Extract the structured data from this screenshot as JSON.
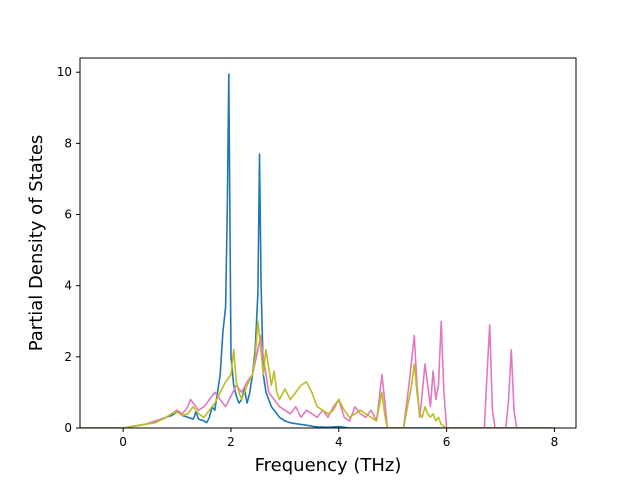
{
  "chart_data": {
    "type": "line",
    "title": "",
    "xlabel": "Frequency (THz)",
    "ylabel": "Partial Density of States",
    "xlim": [
      -0.8,
      8.4
    ],
    "ylim": [
      0,
      10.4
    ],
    "x_ticks": [
      0,
      2,
      4,
      6,
      8
    ],
    "y_ticks": [
      0,
      2,
      4,
      6,
      8,
      10
    ],
    "x_tick_labels": [
      "0",
      "2",
      "4",
      "6",
      "8"
    ],
    "y_tick_labels": [
      "0",
      "2",
      "4",
      "6",
      "8",
      "10"
    ],
    "grid": false,
    "legend": "none",
    "series": [
      {
        "color": "#1f77b4",
        "x": [
          -0.8,
          -0.4,
          0,
          0.2,
          0.4,
          0.6,
          0.8,
          0.9,
          1.0,
          1.1,
          1.2,
          1.3,
          1.35,
          1.4,
          1.5,
          1.55,
          1.6,
          1.65,
          1.7,
          1.75,
          1.8,
          1.85,
          1.9,
          1.93,
          1.96,
          1.98,
          2.0,
          2.05,
          2.1,
          2.15,
          2.2,
          2.25,
          2.3,
          2.35,
          2.4,
          2.45,
          2.5,
          2.53,
          2.56,
          2.6,
          2.65,
          2.7,
          2.75,
          2.8,
          2.85,
          2.9,
          3.0,
          3.1,
          3.2,
          3.3,
          3.4,
          3.5,
          3.6,
          3.8,
          4.0,
          4.2,
          4.5,
          5.0,
          6.0,
          7.0,
          8.0
        ],
        "values": [
          0,
          0,
          0.0,
          0.05,
          0.1,
          0.18,
          0.3,
          0.35,
          0.45,
          0.35,
          0.3,
          0.25,
          0.45,
          0.25,
          0.2,
          0.15,
          0.3,
          0.6,
          0.5,
          1.0,
          1.5,
          2.7,
          3.4,
          6.0,
          9.95,
          6.0,
          2.0,
          1.2,
          0.9,
          0.7,
          0.8,
          1.1,
          0.7,
          1.0,
          1.5,
          2.2,
          3.8,
          7.7,
          4.0,
          1.5,
          1.0,
          0.8,
          0.6,
          0.5,
          0.4,
          0.3,
          0.2,
          0.15,
          0.12,
          0.1,
          0.08,
          0.05,
          0.03,
          0.02,
          0.04,
          0.0,
          0.0,
          0.0,
          0.0,
          0.0,
          0.0
        ]
      },
      {
        "color": "#e377c2",
        "x": [
          -0.8,
          -0.4,
          0,
          0.2,
          0.4,
          0.6,
          0.8,
          0.9,
          1.0,
          1.1,
          1.2,
          1.25,
          1.3,
          1.4,
          1.5,
          1.6,
          1.7,
          1.8,
          1.9,
          2.0,
          2.1,
          2.2,
          2.3,
          2.4,
          2.5,
          2.55,
          2.6,
          2.7,
          2.8,
          2.9,
          3.0,
          3.1,
          3.2,
          3.3,
          3.4,
          3.5,
          3.6,
          3.7,
          3.8,
          3.9,
          4.0,
          4.1,
          4.2,
          4.3,
          4.4,
          4.5,
          4.6,
          4.7,
          4.75,
          4.8,
          4.85,
          4.9,
          5.0,
          5.2,
          5.3,
          5.35,
          5.4,
          5.45,
          5.5,
          5.55,
          5.6,
          5.65,
          5.7,
          5.75,
          5.8,
          5.85,
          5.9,
          5.95,
          6.0,
          6.2,
          6.5,
          6.7,
          6.75,
          6.8,
          6.85,
          6.9,
          7.0,
          7.1,
          7.15,
          7.2,
          7.25,
          7.3,
          7.5,
          8.0
        ],
        "values": [
          0,
          0,
          0.0,
          0.05,
          0.1,
          0.2,
          0.3,
          0.4,
          0.5,
          0.4,
          0.6,
          0.8,
          0.7,
          0.5,
          0.6,
          0.8,
          1.0,
          0.8,
          0.6,
          0.9,
          1.2,
          1.0,
          1.3,
          1.5,
          2.2,
          2.6,
          2.0,
          1.0,
          0.8,
          0.6,
          0.5,
          0.4,
          0.6,
          0.3,
          0.5,
          0.4,
          0.3,
          0.5,
          0.3,
          0.6,
          0.8,
          0.3,
          0.2,
          0.6,
          0.4,
          0.3,
          0.5,
          0.2,
          0.8,
          1.5,
          0.8,
          0.0,
          0.0,
          0.0,
          1.2,
          1.9,
          2.6,
          1.2,
          0.3,
          1.0,
          1.8,
          1.2,
          0.6,
          1.6,
          0.8,
          1.2,
          3.0,
          1.0,
          0.0,
          0.0,
          0.0,
          0.0,
          1.5,
          2.9,
          0.5,
          0.0,
          0.0,
          0.0,
          0.8,
          2.2,
          0.5,
          0.0,
          0.0,
          0.0
        ]
      },
      {
        "color": "#bcbd22",
        "x": [
          -0.8,
          -0.4,
          0,
          0.2,
          0.4,
          0.6,
          0.8,
          0.9,
          1.0,
          1.1,
          1.2,
          1.3,
          1.4,
          1.5,
          1.6,
          1.7,
          1.8,
          1.9,
          2.0,
          2.05,
          2.1,
          2.15,
          2.2,
          2.3,
          2.4,
          2.45,
          2.5,
          2.55,
          2.6,
          2.65,
          2.7,
          2.75,
          2.8,
          2.85,
          2.9,
          3.0,
          3.1,
          3.2,
          3.3,
          3.4,
          3.5,
          3.6,
          3.7,
          3.8,
          3.9,
          4.0,
          4.1,
          4.2,
          4.3,
          4.4,
          4.5,
          4.6,
          4.7,
          4.8,
          4.85,
          4.9,
          5.0,
          5.2,
          5.3,
          5.35,
          5.4,
          5.45,
          5.5,
          5.55,
          5.6,
          5.65,
          5.7,
          5.75,
          5.8,
          5.85,
          5.9,
          6.0,
          6.5,
          7.0,
          7.5,
          8.0
        ],
        "values": [
          0,
          0,
          0.0,
          0.05,
          0.1,
          0.15,
          0.3,
          0.4,
          0.45,
          0.35,
          0.4,
          0.6,
          0.4,
          0.3,
          0.5,
          0.7,
          1.0,
          1.3,
          1.5,
          2.2,
          1.3,
          1.0,
          0.8,
          1.2,
          1.5,
          2.0,
          3.0,
          2.3,
          1.5,
          2.2,
          1.7,
          1.2,
          1.6,
          1.0,
          0.8,
          1.1,
          0.8,
          1.0,
          1.2,
          1.3,
          1.0,
          0.6,
          0.5,
          0.4,
          0.5,
          0.8,
          0.5,
          0.3,
          0.4,
          0.5,
          0.4,
          0.3,
          0.2,
          1.0,
          0.4,
          0.0,
          0.0,
          0.0,
          0.8,
          1.2,
          1.8,
          1.0,
          0.4,
          0.3,
          0.6,
          0.4,
          0.3,
          0.4,
          0.2,
          0.3,
          0.1,
          0.0,
          0.0,
          0.0,
          0.0,
          0.0
        ]
      }
    ]
  }
}
